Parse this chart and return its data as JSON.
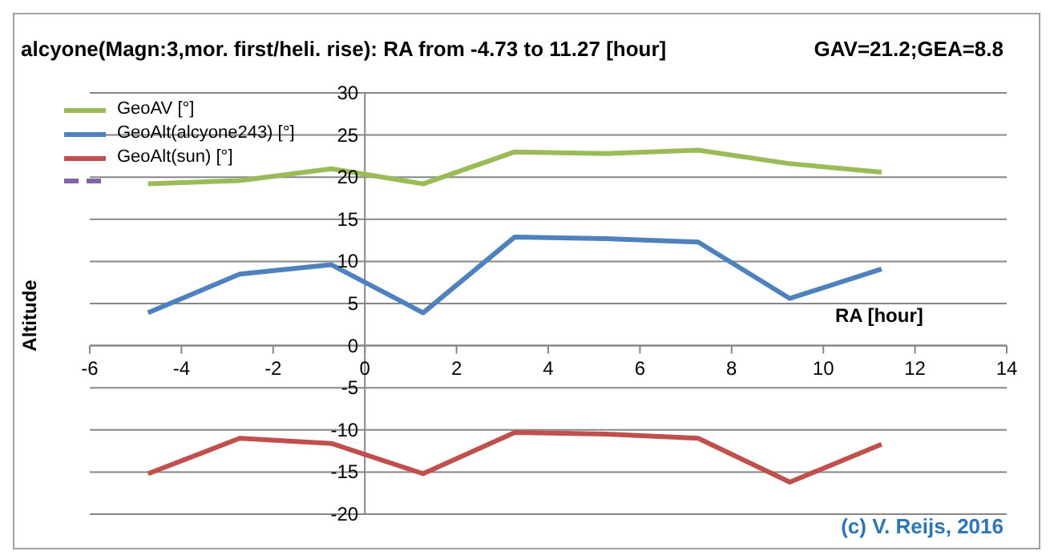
{
  "chart_data": {
    "type": "line",
    "title": "alcyone(Magn:3,mor. first/heli. rise): RA from -4.73  to 11.27  [hour]",
    "xlabel": "RA [hour]",
    "ylabel": "Altitude",
    "annotations": [
      "GAV=21.2;GEA=8.8",
      "(c) V. Reijs, 2016"
    ],
    "x": [
      -4.73,
      -2.73,
      -0.73,
      1.27,
      3.27,
      5.27,
      7.27,
      9.27,
      11.27
    ],
    "series": [
      {
        "name": "GeoAV [°]",
        "color": "#9bbb59",
        "values": [
          19.2,
          19.6,
          21.0,
          19.2,
          23.0,
          22.8,
          23.2,
          21.6,
          20.6
        ]
      },
      {
        "name": "GeoAlt(alcyone243) [°]",
        "color": "#4f81bd",
        "values": [
          3.9,
          8.5,
          9.6,
          3.9,
          12.9,
          12.7,
          12.3,
          5.6,
          9.1
        ]
      },
      {
        "name": "GeoAlt(sun) [°]",
        "color": "#c0504d",
        "values": [
          -15.2,
          -11.0,
          -11.6,
          -15.2,
          -10.3,
          -10.5,
          -11.0,
          -16.2,
          -11.7
        ]
      }
    ],
    "xlim": [
      -6,
      14
    ],
    "xticks": [
      -6,
      -4,
      -2,
      0,
      2,
      4,
      6,
      8,
      10,
      12,
      14
    ],
    "ylim": [
      -20,
      30
    ],
    "yticks": [
      -20,
      -15,
      -10,
      -5,
      0,
      5,
      10,
      15,
      20,
      25,
      30
    ],
    "grid": "y",
    "legend": "top left",
    "marker": "none",
    "line_style": "solid"
  }
}
